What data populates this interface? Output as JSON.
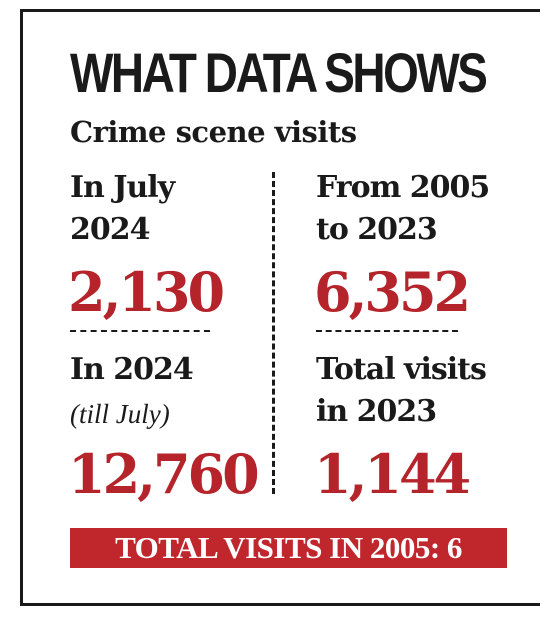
{
  "title": "WHAT DATA SHOWS",
  "subtitle": "Crime scene visits",
  "stats": [
    {
      "label_line1": "In July",
      "label_line2": "2024",
      "value": "2,130"
    },
    {
      "label_line1": "From 2005",
      "label_line2": "to 2023",
      "value": "6,352"
    },
    {
      "label_line1": "In 2024",
      "note": "(till July)",
      "value": "12,760"
    },
    {
      "label_line1": "Total visits",
      "label_line2": "in 2023",
      "value": "1,144"
    }
  ],
  "banner": "TOTAL VISITS IN 2005: 6",
  "colors": {
    "accent": "#b5242b",
    "banner_bg": "#c0272d",
    "text": "#1a1a1a"
  }
}
